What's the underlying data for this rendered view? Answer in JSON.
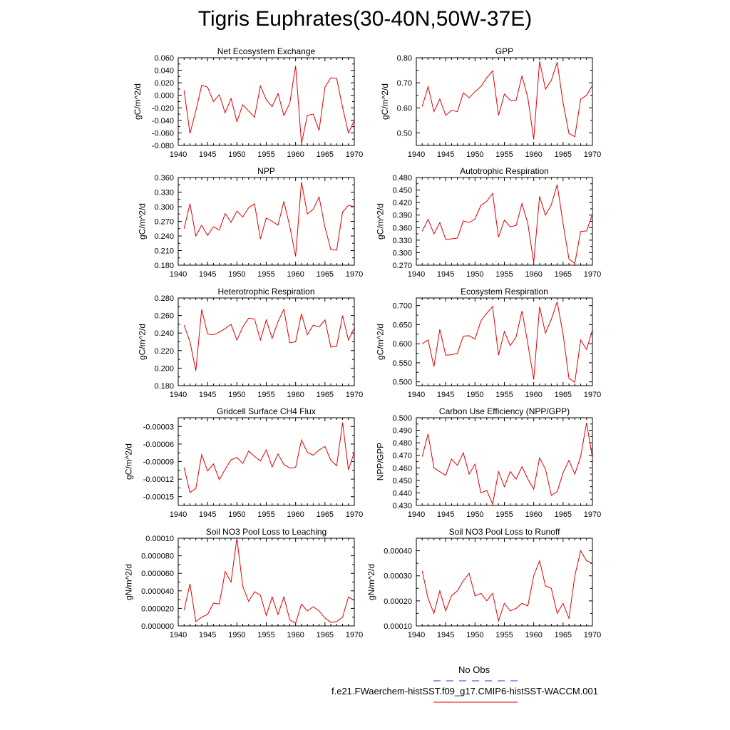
{
  "title": "Tigris Euphrates(30-40N,50W-37E)",
  "legend": {
    "items": [
      {
        "label": "No Obs",
        "color": "#3333cc",
        "style": "dashed"
      },
      {
        "label": "f.e21.FWaerchem-histSST.f09_g17.CMIP6-histSST-WACCM.001",
        "color": "#e00000",
        "style": "solid"
      }
    ]
  },
  "chart_data": [
    {
      "type": "line",
      "title": "Net Ecosystem Exchange",
      "ylabel": "gC/m^2/d",
      "xlim": [
        1940,
        1970
      ],
      "ylim": [
        -0.08,
        0.06
      ],
      "xticks": [
        "1940",
        "1945",
        "1950",
        "1955",
        "1960",
        "1965",
        "1970"
      ],
      "yticks": [
        "-0.080",
        "-0.060",
        "-0.040",
        "-0.020",
        "0.000",
        "0.020",
        "0.040",
        "0.060"
      ],
      "x": [
        1941,
        1942,
        1943,
        1944,
        1945,
        1946,
        1947,
        1948,
        1949,
        1950,
        1951,
        1952,
        1953,
        1954,
        1955,
        1956,
        1957,
        1958,
        1959,
        1960,
        1961,
        1962,
        1963,
        1964,
        1965,
        1966,
        1967,
        1968,
        1969,
        1970
      ],
      "series": [
        {
          "color": "#e00000",
          "values": [
            0.008,
            -0.061,
            -0.025,
            0.016,
            0.013,
            -0.01,
            0.001,
            -0.028,
            -0.005,
            -0.042,
            -0.015,
            -0.025,
            -0.035,
            0.015,
            -0.007,
            -0.018,
            0.003,
            -0.032,
            -0.013,
            0.047,
            -0.077,
            -0.032,
            -0.03,
            -0.056,
            0.013,
            0.028,
            0.027,
            -0.019,
            -0.06,
            -0.04
          ]
        }
      ]
    },
    {
      "type": "line",
      "title": "GPP",
      "ylabel": "gC/m^2/d",
      "xlim": [
        1940,
        1970
      ],
      "ylim": [
        0.45,
        0.8
      ],
      "xticks": [
        "1940",
        "1945",
        "1950",
        "1955",
        "1960",
        "1965",
        "1970"
      ],
      "yticks": [
        "0.50",
        "0.60",
        "0.70",
        "0.80"
      ],
      "x": [
        1941,
        1942,
        1943,
        1944,
        1945,
        1946,
        1947,
        1948,
        1949,
        1950,
        1951,
        1952,
        1953,
        1954,
        1955,
        1956,
        1957,
        1958,
        1959,
        1960,
        1961,
        1962,
        1963,
        1964,
        1965,
        1966,
        1967,
        1968,
        1969,
        1970
      ],
      "series": [
        {
          "color": "#e00000",
          "values": [
            0.605,
            0.685,
            0.585,
            0.635,
            0.57,
            0.59,
            0.585,
            0.66,
            0.64,
            0.665,
            0.685,
            0.72,
            0.748,
            0.57,
            0.655,
            0.63,
            0.63,
            0.728,
            0.64,
            0.474,
            0.786,
            0.675,
            0.71,
            0.782,
            0.62,
            0.498,
            0.485,
            0.635,
            0.65,
            0.69
          ]
        }
      ]
    },
    {
      "type": "line",
      "title": "NPP",
      "ylabel": "gC/m^2/d",
      "xlim": [
        1940,
        1970
      ],
      "ylim": [
        0.18,
        0.36
      ],
      "xticks": [
        "1940",
        "1945",
        "1950",
        "1955",
        "1960",
        "1965",
        "1970"
      ],
      "yticks": [
        "0.180",
        "0.210",
        "0.240",
        "0.270",
        "0.300",
        "0.330",
        "0.360"
      ],
      "x": [
        1941,
        1942,
        1943,
        1944,
        1945,
        1946,
        1947,
        1948,
        1949,
        1950,
        1951,
        1952,
        1953,
        1954,
        1955,
        1956,
        1957,
        1958,
        1959,
        1960,
        1961,
        1962,
        1963,
        1964,
        1965,
        1966,
        1967,
        1968,
        1969,
        1970
      ],
      "series": [
        {
          "color": "#e00000",
          "values": [
            0.255,
            0.306,
            0.24,
            0.262,
            0.241,
            0.259,
            0.252,
            0.286,
            0.268,
            0.291,
            0.279,
            0.298,
            0.306,
            0.234,
            0.277,
            0.27,
            0.262,
            0.311,
            0.26,
            0.198,
            0.351,
            0.285,
            0.295,
            0.32,
            0.258,
            0.212,
            0.211,
            0.289,
            0.303,
            0.3
          ]
        }
      ]
    },
    {
      "type": "line",
      "title": "Autotrophic Respiration",
      "ylabel": "gC/m^2/d",
      "xlim": [
        1940,
        1970
      ],
      "ylim": [
        0.27,
        0.48
      ],
      "xticks": [
        "1940",
        "1945",
        "1950",
        "1955",
        "1960",
        "1965",
        "1970"
      ],
      "yticks": [
        "0.270",
        "0.300",
        "0.330",
        "0.360",
        "0.390",
        "0.420",
        "0.450",
        "0.480"
      ],
      "x": [
        1941,
        1942,
        1943,
        1944,
        1945,
        1946,
        1947,
        1948,
        1949,
        1950,
        1951,
        1952,
        1953,
        1954,
        1955,
        1956,
        1957,
        1958,
        1959,
        1960,
        1961,
        1962,
        1963,
        1964,
        1965,
        1966,
        1967,
        1968,
        1969,
        1970
      ],
      "series": [
        {
          "color": "#e00000",
          "values": [
            0.351,
            0.38,
            0.345,
            0.372,
            0.332,
            0.333,
            0.335,
            0.376,
            0.372,
            0.381,
            0.413,
            0.423,
            0.442,
            0.337,
            0.378,
            0.362,
            0.365,
            0.418,
            0.37,
            0.276,
            0.435,
            0.39,
            0.415,
            0.463,
            0.37,
            0.285,
            0.274,
            0.351,
            0.352,
            0.392
          ]
        }
      ]
    },
    {
      "type": "line",
      "title": "Heterotrophic Respiration",
      "ylabel": "gC/m^2/d",
      "xlim": [
        1940,
        1970
      ],
      "ylim": [
        0.18,
        0.28
      ],
      "xticks": [
        "1940",
        "1945",
        "1950",
        "1955",
        "1960",
        "1965",
        "1970"
      ],
      "yticks": [
        "0.180",
        "0.200",
        "0.220",
        "0.240",
        "0.260",
        "0.280"
      ],
      "x": [
        1941,
        1942,
        1943,
        1944,
        1945,
        1946,
        1947,
        1948,
        1949,
        1950,
        1951,
        1952,
        1953,
        1954,
        1955,
        1956,
        1957,
        1958,
        1959,
        1960,
        1961,
        1962,
        1963,
        1964,
        1965,
        1966,
        1967,
        1968,
        1969,
        1970
      ],
      "series": [
        {
          "color": "#e00000",
          "values": [
            0.249,
            0.23,
            0.197,
            0.267,
            0.239,
            0.238,
            0.241,
            0.245,
            0.25,
            0.232,
            0.247,
            0.257,
            0.256,
            0.232,
            0.255,
            0.234,
            0.253,
            0.267,
            0.229,
            0.23,
            0.262,
            0.238,
            0.249,
            0.247,
            0.255,
            0.224,
            0.225,
            0.26,
            0.232,
            0.246
          ]
        }
      ]
    },
    {
      "type": "line",
      "title": "Ecosystem Respiration",
      "ylabel": "gC/m^2/d",
      "xlim": [
        1940,
        1970
      ],
      "ylim": [
        0.49,
        0.72
      ],
      "xticks": [
        "1940",
        "1945",
        "1950",
        "1955",
        "1960",
        "1965",
        "1970"
      ],
      "yticks": [
        "0.500",
        "0.550",
        "0.600",
        "0.650",
        "0.700"
      ],
      "x": [
        1941,
        1942,
        1943,
        1944,
        1945,
        1946,
        1947,
        1948,
        1949,
        1950,
        1951,
        1952,
        1953,
        1954,
        1955,
        1956,
        1957,
        1958,
        1959,
        1960,
        1961,
        1962,
        1963,
        1964,
        1965,
        1966,
        1967,
        1968,
        1969,
        1970
      ],
      "series": [
        {
          "color": "#e00000",
          "values": [
            0.6,
            0.61,
            0.54,
            0.638,
            0.57,
            0.571,
            0.575,
            0.62,
            0.621,
            0.612,
            0.66,
            0.68,
            0.698,
            0.57,
            0.632,
            0.595,
            0.618,
            0.686,
            0.6,
            0.506,
            0.697,
            0.628,
            0.664,
            0.71,
            0.625,
            0.509,
            0.499,
            0.61,
            0.585,
            0.636
          ]
        }
      ]
    },
    {
      "type": "line",
      "title": "Gridcell Surface CH4 Flux",
      "ylabel": "gC/m^2/d",
      "xlim": [
        1940,
        1970
      ],
      "ylim": [
        -0.000165,
        -1.5e-05
      ],
      "xticks": [
        "1940",
        "1945",
        "1950",
        "1955",
        "1960",
        "1965",
        "1970"
      ],
      "yticks": [
        "-0.00015",
        "-0.00012",
        "-0.00009",
        "-0.00006",
        "-0.00003"
      ],
      "x": [
        1941,
        1942,
        1943,
        1944,
        1945,
        1946,
        1947,
        1948,
        1949,
        1950,
        1951,
        1952,
        1953,
        1954,
        1955,
        1956,
        1957,
        1958,
        1959,
        1960,
        1961,
        1962,
        1963,
        1964,
        1965,
        1966,
        1967,
        1968,
        1969,
        1970
      ],
      "series": [
        {
          "color": "#e00000",
          "values": [
            -0.0001,
            -0.000143,
            -0.000136,
            -7.8e-05,
            -0.000106,
            -9.4e-05,
            -0.000121,
            -0.000103,
            -8.7e-05,
            -8.3e-05,
            -9.3e-05,
            -7.2e-05,
            -8.1e-05,
            -8.9e-05,
            -7e-05,
            -9.9e-05,
            -7.7e-05,
            -9.5e-05,
            -0.000101,
            -0.0001,
            -5.3e-05,
            -7.4e-05,
            -7.9e-05,
            -7e-05,
            -6.4e-05,
            -8.8e-05,
            -9.7e-05,
            -2.3e-05,
            -0.000104,
            -7.4e-05
          ]
        }
      ]
    },
    {
      "type": "line",
      "title": "Carbon Use Efficiency (NPP/GPP)",
      "ylabel": "NPP/GPP",
      "xlim": [
        1940,
        1970
      ],
      "ylim": [
        0.43,
        0.5
      ],
      "xticks": [
        "1940",
        "1945",
        "1950",
        "1955",
        "1960",
        "1965",
        "1970"
      ],
      "yticks": [
        "0.430",
        "0.440",
        "0.450",
        "0.460",
        "0.470",
        "0.480",
        "0.490",
        "0.500"
      ],
      "x": [
        1941,
        1942,
        1943,
        1944,
        1945,
        1946,
        1947,
        1948,
        1949,
        1950,
        1951,
        1952,
        1953,
        1954,
        1955,
        1956,
        1957,
        1958,
        1959,
        1960,
        1961,
        1962,
        1963,
        1964,
        1965,
        1966,
        1967,
        1968,
        1969,
        1970
      ],
      "series": [
        {
          "color": "#e00000",
          "values": [
            0.469,
            0.487,
            0.46,
            0.457,
            0.454,
            0.467,
            0.462,
            0.472,
            0.455,
            0.463,
            0.44,
            0.442,
            0.431,
            0.457,
            0.445,
            0.457,
            0.451,
            0.461,
            0.451,
            0.443,
            0.468,
            0.459,
            0.438,
            0.441,
            0.456,
            0.466,
            0.455,
            0.469,
            0.496,
            0.468
          ]
        }
      ]
    },
    {
      "type": "line",
      "title": "Soil NO3 Pool Loss to Leaching",
      "ylabel": "gN/m^2/d",
      "xlim": [
        1940,
        1970
      ],
      "ylim": [
        0.0,
        0.0001
      ],
      "xticks": [
        "1940",
        "1945",
        "1950",
        "1955",
        "1960",
        "1965",
        "1970"
      ],
      "yticks": [
        "0.000000",
        "0.000020",
        "0.000040",
        "0.000060",
        "0.000080",
        "0.00010"
      ],
      "x": [
        1941,
        1942,
        1943,
        1944,
        1945,
        1946,
        1947,
        1948,
        1949,
        1950,
        1951,
        1952,
        1953,
        1954,
        1955,
        1956,
        1957,
        1958,
        1959,
        1960,
        1961,
        1962,
        1963,
        1964,
        1965,
        1966,
        1967,
        1968,
        1969,
        1970
      ],
      "series": [
        {
          "color": "#e00000",
          "values": [
            1.8e-05,
            4.8e-05,
            5e-06,
            1e-05,
            1.3e-05,
            2.6e-05,
            2.5e-05,
            6.2e-05,
            5e-05,
            0.0001,
            4.5e-05,
            2.8e-05,
            3.9e-05,
            3.5e-05,
            1.2e-05,
            3.3e-05,
            1.3e-05,
            3.3e-05,
            7e-06,
            3e-06,
            2.5e-05,
            1.7e-05,
            2.2e-05,
            1.7e-05,
            9e-06,
            4e-06,
            5e-06,
            1e-05,
            3.3e-05,
            2.9e-05
          ]
        }
      ]
    },
    {
      "type": "line",
      "title": "Soil NO3 Pool Loss to Runoff",
      "ylabel": "gN/m^2/d",
      "xlim": [
        1940,
        1970
      ],
      "ylim": [
        0.0001,
        0.00045
      ],
      "xticks": [
        "1940",
        "1945",
        "1950",
        "1955",
        "1960",
        "1965",
        "1970"
      ],
      "yticks": [
        "0.00010",
        "0.00020",
        "0.00030",
        "0.00040"
      ],
      "x": [
        1941,
        1942,
        1943,
        1944,
        1945,
        1946,
        1947,
        1948,
        1949,
        1950,
        1951,
        1952,
        1953,
        1954,
        1955,
        1956,
        1957,
        1958,
        1959,
        1960,
        1961,
        1962,
        1963,
        1964,
        1965,
        1966,
        1967,
        1968,
        1969,
        1970
      ],
      "series": [
        {
          "color": "#e00000",
          "values": [
            0.00032,
            0.00021,
            0.00015,
            0.00024,
            0.00016,
            0.00022,
            0.00024,
            0.00028,
            0.00031,
            0.00022,
            0.00023,
            0.0002,
            0.00023,
            0.00012,
            0.00019,
            0.00016,
            0.00017,
            0.00019,
            0.00018,
            0.0003,
            0.00036,
            0.00026,
            0.00025,
            0.00015,
            0.00019,
            0.00013,
            0.0003,
            0.0004,
            0.00036,
            0.00035
          ]
        }
      ]
    }
  ]
}
